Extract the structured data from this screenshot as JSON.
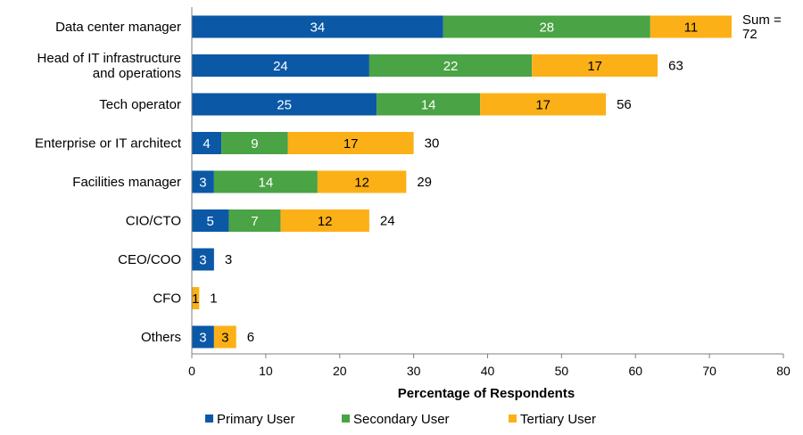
{
  "chart_data": {
    "type": "bar",
    "orientation": "horizontal",
    "stacked": true,
    "title": "",
    "xlabel": "Percentage of Respondents",
    "ylabel": "",
    "xlim": [
      0,
      80
    ],
    "xticks": [
      0,
      10,
      20,
      30,
      40,
      50,
      60,
      70,
      80
    ],
    "grid": false,
    "legend_position": "bottom",
    "categories": [
      [
        "Data center manager"
      ],
      [
        "Head of IT infrastructure",
        "and operations"
      ],
      [
        "Tech operator"
      ],
      [
        "Enterprise or IT architect"
      ],
      [
        "Facilities manager"
      ],
      [
        "CIO/CTO"
      ],
      [
        "CEO/COO"
      ],
      [
        "CFO"
      ],
      [
        "Others"
      ]
    ],
    "series": [
      {
        "name": "Primary User",
        "color": "#0B58A6",
        "label_color": "#ffffff",
        "values": [
          34,
          24,
          25,
          4,
          3,
          5,
          3,
          0,
          3
        ]
      },
      {
        "name": "Secondary User",
        "color": "#4AA344",
        "label_color": "#ffffff",
        "values": [
          28,
          22,
          14,
          9,
          14,
          7,
          0,
          0,
          0
        ]
      },
      {
        "name": "Tertiary User",
        "color": "#FCB017",
        "label_color": "#000000",
        "values": [
          11,
          17,
          17,
          17,
          12,
          12,
          0,
          1,
          3
        ]
      }
    ],
    "totals": [
      [
        "Sum =",
        "72"
      ],
      [
        "63"
      ],
      [
        "56"
      ],
      [
        "30"
      ],
      [
        "29"
      ],
      [
        "24"
      ],
      [
        "3"
      ],
      [
        "1"
      ],
      [
        "6"
      ]
    ]
  }
}
